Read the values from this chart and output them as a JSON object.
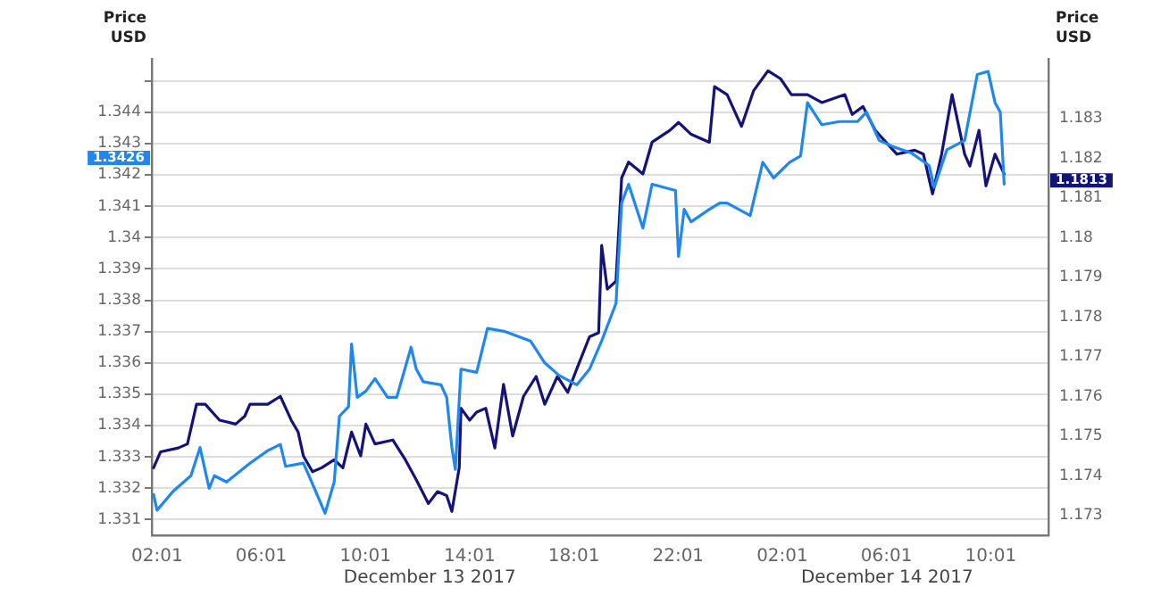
{
  "chart_data": {
    "type": "line",
    "ylabel": "Price USD",
    "y2label": "Price USD",
    "xlim": [
      "2017-12-13T01:49",
      "2017-12-14T12:14"
    ],
    "xticks": [
      {
        "value": "2017-12-13T02:01",
        "label": "02:01"
      },
      {
        "value": "2017-12-13T06:01",
        "label": "06:01"
      },
      {
        "value": "2017-12-13T10:01",
        "label": "10:01"
      },
      {
        "value": "2017-12-13T14:01",
        "label": "14:01"
      },
      {
        "value": "2017-12-13T18:01",
        "label": "18:01"
      },
      {
        "value": "2017-12-13T22:01",
        "label": "22:01"
      },
      {
        "value": "2017-12-14T02:01",
        "label": "02:01"
      },
      {
        "value": "2017-12-14T06:01",
        "label": "06:01"
      },
      {
        "value": "2017-12-14T10:01",
        "label": "10:01"
      }
    ],
    "ylim": [
      1.3305,
      1.3457
    ],
    "yticks": [
      1.331,
      1.332,
      1.333,
      1.334,
      1.335,
      1.336,
      1.337,
      1.338,
      1.339,
      1.34,
      1.341,
      1.342,
      1.343,
      1.344,
      {
        "value": 1.345,
        "label": null
      }
    ],
    "y2lim": [
      1.1725,
      1.1845
    ],
    "y2ticks": [
      1.173,
      1.174,
      1.175,
      1.176,
      1.177,
      1.178,
      1.179,
      1.18,
      1.181,
      1.182,
      1.183
    ],
    "grid": "y",
    "legend": false,
    "marker": "none",
    "line_style": "solid",
    "annotations": [
      "December 13 2017",
      "December 14 2017",
      "1.3426",
      "1.1813"
    ],
    "series": [
      {
        "color": "#1e88f0",
        "x": [
          "2017-12-13T01:53",
          "2017-12-13T02:01",
          "2017-12-13T02:38",
          "2017-12-13T03:19",
          "2017-12-13T03:40",
          "2017-12-13T04:01",
          "2017-12-13T04:13",
          "2017-12-13T04:41",
          "2017-12-13T05:35",
          "2017-12-13T06:16",
          "2017-12-13T06:45",
          "2017-12-13T06:57",
          "2017-12-13T07:38",
          "2017-12-13T07:51",
          "2017-12-13T08:28",
          "2017-12-13T08:49",
          "2017-12-13T09:01",
          "2017-12-13T09:22",
          "2017-12-13T09:29",
          "2017-12-13T09:42",
          "2017-12-13T10:02",
          "2017-12-13T10:23",
          "2017-12-13T10:52",
          "2017-12-13T11:13",
          "2017-12-13T11:46",
          "2017-12-13T11:58",
          "2017-12-13T12:14",
          "2017-12-13T12:55",
          "2017-12-13T13:08",
          "2017-12-13T13:20",
          "2017-12-13T13:28",
          "2017-12-13T13:41",
          "2017-12-13T14:17",
          "2017-12-13T14:42",
          "2017-12-13T15:23",
          "2017-12-13T16:21",
          "2017-12-13T16:54",
          "2017-12-13T17:27",
          "2017-12-13T18:08",
          "2017-12-13T18:37",
          "2017-12-13T19:05",
          "2017-12-13T19:38",
          "2017-12-13T19:51",
          "2017-12-13T20:07",
          "2017-12-13T20:40",
          "2017-12-13T21:01",
          "2017-12-13T21:55",
          "2017-12-13T22:02",
          "2017-12-13T22:15",
          "2017-12-13T22:31",
          "2017-12-13T23:13",
          "2017-12-13T23:37",
          "2017-12-13T23:54",
          "2017-12-14T00:47",
          "2017-12-14T01:16",
          "2017-12-14T01:41",
          "2017-12-14T02:18",
          "2017-12-14T02:43",
          "2017-12-14T02:59",
          "2017-12-14T03:32",
          "2017-12-14T04:13",
          "2017-12-14T04:54",
          "2017-12-14T05:15",
          "2017-12-14T05:44",
          "2017-12-14T06:16",
          "2017-12-14T06:58",
          "2017-12-14T07:39",
          "2017-12-14T07:51",
          "2017-12-14T08:20",
          "2017-12-14T09:01",
          "2017-12-14T09:30",
          "2017-12-14T09:55",
          "2017-12-14T10:11",
          "2017-12-14T10:23",
          "2017-12-14T10:32"
        ],
        "values": [
          1.3318,
          1.3313,
          1.3319,
          1.3324,
          1.3333,
          1.332,
          1.3324,
          1.3322,
          1.3328,
          1.3332,
          1.3334,
          1.3327,
          1.3328,
          1.3324,
          1.3312,
          1.3322,
          1.3343,
          1.3346,
          1.3366,
          1.3349,
          1.3351,
          1.3355,
          1.3349,
          1.3349,
          1.3365,
          1.3358,
          1.3354,
          1.3353,
          1.3349,
          1.3333,
          1.3326,
          1.3358,
          1.3357,
          1.3371,
          1.337,
          1.3367,
          1.336,
          1.3356,
          1.3353,
          1.3358,
          1.3367,
          1.3379,
          1.3411,
          1.3417,
          1.3403,
          1.3417,
          1.3415,
          1.3394,
          1.3409,
          1.3405,
          1.3409,
          1.3411,
          1.3411,
          1.3407,
          1.3424,
          1.3419,
          1.3424,
          1.3426,
          1.3443,
          1.3436,
          1.3437,
          1.3437,
          1.344,
          1.3431,
          1.3429,
          1.3427,
          1.3423,
          1.3416,
          1.3428,
          1.3431,
          1.3452,
          1.3453,
          1.3443,
          1.344,
          1.3417
        ]
      },
      {
        "color": "#14137a",
        "axis": "y2",
        "x": [
          "2017-12-13T01:53",
          "2017-12-13T02:09",
          "2017-12-13T02:50",
          "2017-12-13T03:11",
          "2017-12-13T03:32",
          "2017-12-13T03:52",
          "2017-12-13T04:25",
          "2017-12-13T05:02",
          "2017-12-13T05:23",
          "2017-12-13T05:35",
          "2017-12-13T06:16",
          "2017-12-13T06:45",
          "2017-12-13T07:10",
          "2017-12-13T07:26",
          "2017-12-13T07:38",
          "2017-12-13T07:59",
          "2017-12-13T08:20",
          "2017-12-13T08:49",
          "2017-12-13T09:09",
          "2017-12-13T09:29",
          "2017-12-13T09:50",
          "2017-12-13T10:02",
          "2017-12-13T10:23",
          "2017-12-13T11:04",
          "2017-12-13T11:33",
          "2017-12-13T11:58",
          "2017-12-13T12:26",
          "2017-12-13T12:47",
          "2017-12-13T13:08",
          "2017-12-13T13:20",
          "2017-12-13T13:37",
          "2017-12-13T13:41",
          "2017-12-13T14:01",
          "2017-12-13T14:17",
          "2017-12-13T14:38",
          "2017-12-13T14:59",
          "2017-12-13T15:19",
          "2017-12-13T15:40",
          "2017-12-13T16:05",
          "2017-12-13T16:34",
          "2017-12-13T16:54",
          "2017-12-13T17:23",
          "2017-12-13T17:47",
          "2017-12-13T18:08",
          "2017-12-13T18:37",
          "2017-12-13T18:58",
          "2017-12-13T19:05",
          "2017-12-13T19:18",
          "2017-12-13T19:38",
          "2017-12-13T19:51",
          "2017-12-13T20:07",
          "2017-12-13T20:40",
          "2017-12-13T21:01",
          "2017-12-13T21:42",
          "2017-12-13T22:02",
          "2017-12-13T22:31",
          "2017-12-13T23:13",
          "2017-12-13T23:25",
          "2017-12-13T23:54",
          "2017-12-14T00:27",
          "2017-12-14T00:55",
          "2017-12-14T01:28",
          "2017-12-14T01:57",
          "2017-12-14T02:22",
          "2017-12-14T02:59",
          "2017-12-14T03:32",
          "2017-12-14T04:25",
          "2017-12-14T04:42",
          "2017-12-14T05:07",
          "2017-12-14T05:35",
          "2017-12-14T06:25",
          "2017-12-14T07:06",
          "2017-12-14T07:26",
          "2017-12-14T07:47",
          "2017-12-14T08:08",
          "2017-12-14T08:32",
          "2017-12-14T09:01",
          "2017-12-14T09:13",
          "2017-12-14T09:34",
          "2017-12-14T09:50",
          "2017-12-14T10:11",
          "2017-12-14T10:32"
        ],
        "values": [
          1.1742,
          1.1746,
          1.1747,
          1.1748,
          1.1758,
          1.1758,
          1.1754,
          1.1753,
          1.1755,
          1.1758,
          1.1758,
          1.176,
          1.1754,
          1.1751,
          1.1745,
          1.1741,
          1.1742,
          1.1744,
          1.1742,
          1.1751,
          1.1745,
          1.1753,
          1.1748,
          1.1749,
          1.1744,
          1.1739,
          1.1733,
          1.1736,
          1.1735,
          1.1731,
          1.1742,
          1.1757,
          1.1754,
          1.1756,
          1.1757,
          1.1747,
          1.1763,
          1.175,
          1.176,
          1.1765,
          1.1758,
          1.1765,
          1.1761,
          1.1767,
          1.1775,
          1.1776,
          1.1798,
          1.1787,
          1.1789,
          1.1815,
          1.1819,
          1.1816,
          1.1824,
          1.1827,
          1.1829,
          1.1826,
          1.1824,
          1.1838,
          1.1836,
          1.1828,
          1.1837,
          1.1842,
          1.184,
          1.1836,
          1.1836,
          1.1834,
          1.1836,
          1.1831,
          1.1833,
          1.1827,
          1.1821,
          1.1822,
          1.1821,
          1.1811,
          1.1821,
          1.1836,
          1.1821,
          1.1818,
          1.1827,
          1.1813,
          1.1821,
          1.1816
        ]
      }
    ]
  }
}
